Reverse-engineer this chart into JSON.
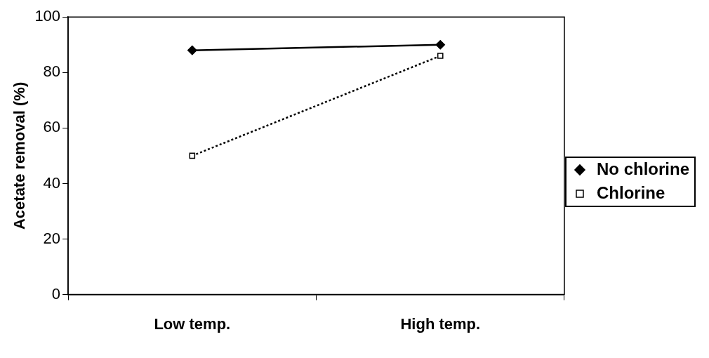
{
  "chart_data": {
    "type": "line",
    "ylabel": "Acetate removal (%)",
    "categories": [
      "Low temp.",
      "High temp."
    ],
    "series": [
      {
        "name": "No chlorine",
        "color": "#000000",
        "values": [
          88,
          90
        ],
        "marker": "diamond",
        "line_style": "solid"
      },
      {
        "name": "Chlorine",
        "color": "#000000",
        "values": [
          50,
          86
        ],
        "marker": "square",
        "line_style": "dotted"
      }
    ],
    "ylim": [
      0,
      100
    ],
    "yticks": [
      0,
      20,
      40,
      60,
      80,
      100
    ],
    "grid": false,
    "legend": "right"
  }
}
